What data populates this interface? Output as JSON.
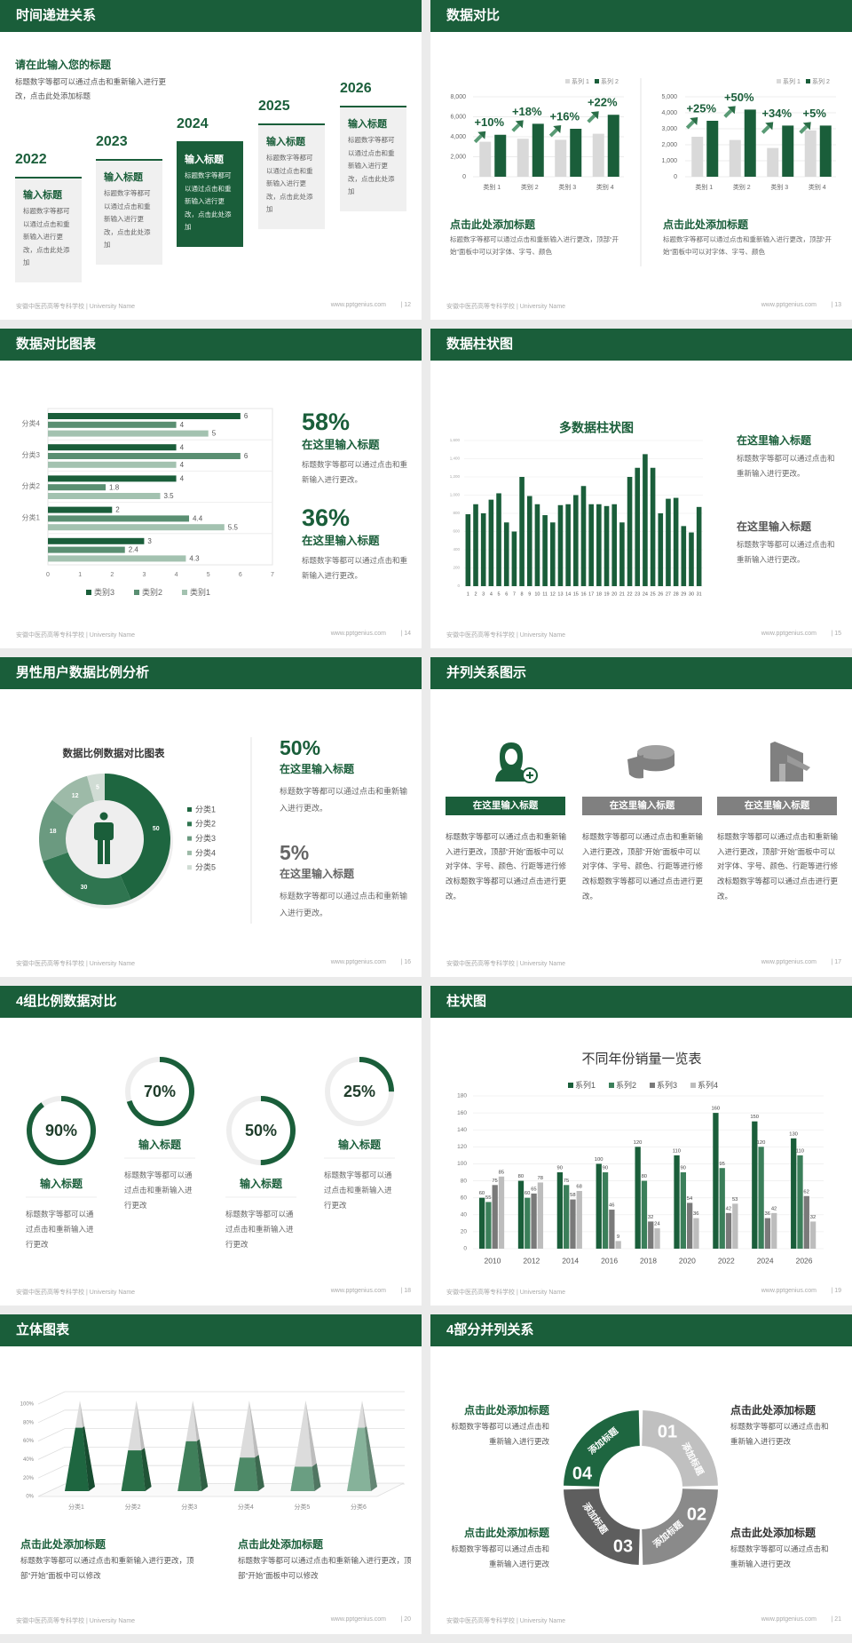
{
  "footer": {
    "school": "安徽中医药高等专科学校 | University Name",
    "site": "www.pptgenius.com"
  },
  "colors": {
    "brand_green": "#1a5e3a",
    "gray": "#808080",
    "light_gray": "#f0f0f0"
  },
  "slides": [
    {
      "title": "时间递进关系",
      "page": "12",
      "heading": "请在此输入您的标题",
      "desc": "标题数字等都可以通过点击和重新输入进行更改，点击此处添加标题",
      "steps": [
        {
          "year": "2022",
          "title": "输入标题",
          "text": "标题数字等都可以通过点击和重新输入进行更改，点击此处添加",
          "active": false
        },
        {
          "year": "2023",
          "title": "输入标题",
          "text": "标题数字等都可以通过点击和重新输入进行更改，点击此处添加",
          "active": false
        },
        {
          "year": "2024",
          "title": "输入标题",
          "text": "标题数字等都可以通过点击和重新输入进行更改，点击此处添加",
          "active": true
        },
        {
          "year": "2025",
          "title": "输入标题",
          "text": "标题数字等都可以通过点击和重新输入进行更改，点击此处添加",
          "active": false
        },
        {
          "year": "2026",
          "title": "输入标题",
          "text": "标题数字等都可以通过点击和重新输入进行更改，点击此处添加",
          "active": false
        }
      ]
    },
    {
      "title": "数据对比",
      "page": "13",
      "blocks": [
        {
          "heading": "点击此处添加标题",
          "text": "标题数字等都可以通过点击和重新输入进行更改，顶部“开始”面板中可以对字体、字号、颜色"
        },
        {
          "heading": "点击此处添加标题",
          "text": "标题数字等都可以通过点击和重新输入进行更改，顶部“开始”面板中可以对字体、字号、颜色"
        }
      ]
    },
    {
      "title": "数据对比图表",
      "page": "14",
      "stats": [
        {
          "value": "58%",
          "heading": "在这里输入标题",
          "text": "标题数字等都可以通过点击和重新输入进行更改。"
        },
        {
          "value": "36%",
          "heading": "在这里输入标题",
          "text": "标题数字等都可以通过点击和重新输入进行更改。"
        }
      ]
    },
    {
      "title": "数据柱状图",
      "page": "15",
      "blocks": [
        {
          "heading": "在这里输入标题",
          "text": "标题数字等都可以通过点击和重新输入进行更改。"
        },
        {
          "heading": "在这里输入标题",
          "text": "标题数字等都可以通过点击和重新输入进行更改。"
        }
      ]
    },
    {
      "title": "男性用户数据比例分析",
      "page": "16",
      "center_icon": "male-person-icon",
      "stats": [
        {
          "value": "50%",
          "heading": "在这里输入标题",
          "text": "标题数字等都可以通过点击和重新输入进行更改。"
        },
        {
          "value": "5%",
          "heading": "在这里输入标题",
          "text": "标题数字等都可以通过点击和重新输入进行更改。"
        }
      ]
    },
    {
      "title": "并列关系图示",
      "page": "17",
      "columns": [
        {
          "icon": "female-user-add-icon",
          "label": "在这里输入标题",
          "text": "标题数字等都可以通过点击和重新输入进行更改，顶部“开始”面板中可以对字体、字号、颜色、行距等进行修改标题数字等都可以通过点击进行更改。",
          "color": "#1a5e3a"
        },
        {
          "icon": "pie-chart-3d-icon",
          "label": "在这里输入标题",
          "text": "标题数字等都可以通过点击和重新输入进行更改，顶部“开始”面板中可以对字体、字号、颜色、行距等进行修改标题数字等都可以通过点击进行更改。",
          "color": "#808080"
        },
        {
          "icon": "store-building-icon",
          "label": "在这里输入标题",
          "text": "标题数字等都可以通过点击和重新输入进行更改，顶部“开始”面板中可以对字体、字号、颜色、行距等进行修改标题数字等都可以通过点击进行更改。",
          "color": "#808080"
        }
      ]
    },
    {
      "title": "4组比例数据对比",
      "page": "18",
      "rings": [
        {
          "label": "90%",
          "progress": 0.9,
          "heading": "输入标题",
          "text": "标题数字等都可以通过点击和重新输入进行更改"
        },
        {
          "label": "70%",
          "progress": 0.7,
          "heading": "输入标题",
          "text": "标题数字等都可以通过点击和重新输入进行更改"
        },
        {
          "label": "50%",
          "progress": 0.5,
          "heading": "输入标题",
          "text": "标题数字等都可以通过点击和重新输入进行更改"
        },
        {
          "label": "25%",
          "progress": 0.25,
          "heading": "输入标题",
          "text": "标题数字等都可以通过点击和重新输入进行更改"
        }
      ]
    },
    {
      "title": "柱状图",
      "page": "19"
    },
    {
      "title": "立体图表",
      "page": "20",
      "blocks": [
        {
          "heading": "点击此处添加标题",
          "text": "标题数字等都可以通过点击和重新输入进行更改，顶部“开始”面板中可以修改"
        },
        {
          "heading": "点击此处添加标题",
          "text": "标题数字等都可以通过点击和重新输入进行更改，顶部“开始”面板中可以修改"
        }
      ]
    },
    {
      "title": "4部分并列关系",
      "page": "21",
      "segments": [
        {
          "number": "01",
          "label": "添加标题",
          "color": "#c0c0c0"
        },
        {
          "number": "02",
          "label": "添加标题",
          "color": "#8a8a8a"
        },
        {
          "number": "03",
          "label": "添加标题",
          "color": "#5e5e5e"
        },
        {
          "number": "04",
          "label": "添加标题",
          "color": "#1e6640"
        }
      ],
      "blocks": [
        {
          "heading": "点击此处添加标题",
          "text": "标题数字等都可以通过点击和重新输入进行更改"
        },
        {
          "heading": "点击此处添加标题",
          "text": "标题数字等都可以通过点击和重新输入进行更改"
        },
        {
          "heading": "点击此处添加标题",
          "text": "标题数字等都可以通过点击和重新输入进行更改"
        },
        {
          "heading": "点击此处添加标题",
          "text": "标题数字等都可以通过点击和重新输入进行更改"
        }
      ]
    }
  ],
  "chart_data": [
    {
      "type": "bar",
      "title": "",
      "categories": [
        "类别 1",
        "类别 2",
        "类别 3",
        "类别 4"
      ],
      "series": [
        {
          "name": "系列 1",
          "values": [
            3500,
            3800,
            3700,
            4300
          ],
          "color": "#d9d9d9"
        },
        {
          "name": "系列 2",
          "values": [
            4200,
            5300,
            4800,
            6200
          ],
          "color": "#1a5e3a"
        }
      ],
      "annotations": [
        "+10%",
        "+18%",
        "+16%",
        "+22%"
      ],
      "ylim": [
        0,
        8000
      ],
      "yticks": [
        "0",
        "2,000",
        "4,000",
        "6,000",
        "8,000"
      ],
      "grid": true,
      "legend": "top-right"
    },
    {
      "type": "bar",
      "title": "",
      "categories": [
        "类别 1",
        "类别 2",
        "类别 3",
        "类别 4"
      ],
      "series": [
        {
          "name": "系列 1",
          "values": [
            2500,
            2300,
            1800,
            2900
          ],
          "color": "#d9d9d9"
        },
        {
          "name": "系列 2",
          "values": [
            3500,
            4200,
            3200,
            3200
          ],
          "color": "#1a5e3a"
        }
      ],
      "annotations": [
        "+25%",
        "+50%",
        "+34%",
        "+5%"
      ],
      "ylim": [
        0,
        5000
      ],
      "yticks": [
        "0",
        "1,000",
        "2,000",
        "3,000",
        "4,000",
        "5,000"
      ],
      "grid": true,
      "legend": "top-right"
    },
    {
      "type": "bar",
      "orientation": "horizontal",
      "title": "",
      "categories": [
        "分类4",
        "分类3",
        "分类2",
        "分类1",
        ""
      ],
      "series": [
        {
          "name": "类别3",
          "values": [
            6,
            4,
            4,
            2,
            3
          ],
          "color": "#1a5e3a"
        },
        {
          "name": "类别2",
          "values": [
            4,
            6,
            1.8,
            4.4,
            2.4
          ],
          "color": "#5a8f72"
        },
        {
          "name": "类别1",
          "values": [
            5,
            4,
            3.5,
            5.5,
            4.3
          ],
          "color": "#a3c2b0"
        }
      ],
      "xlim": [
        0,
        7
      ],
      "xticks": [
        "0",
        "1",
        "2",
        "3",
        "4",
        "5",
        "6",
        "7"
      ],
      "grid": true,
      "legend": "bottom"
    },
    {
      "type": "bar",
      "title": "多数据柱状图",
      "categories": [
        "1",
        "2",
        "3",
        "4",
        "5",
        "6",
        "7",
        "8",
        "9",
        "10",
        "11",
        "12",
        "13",
        "14",
        "15",
        "16",
        "17",
        "18",
        "19",
        "20",
        "21",
        "22",
        "23",
        "24",
        "25",
        "26",
        "27",
        "28",
        "29",
        "30",
        "31"
      ],
      "values": [
        790,
        900,
        800,
        950,
        1020,
        700,
        600,
        1200,
        990,
        900,
        780,
        700,
        890,
        900,
        1000,
        1100,
        900,
        900,
        880,
        900,
        700,
        1200,
        1300,
        1450,
        1300,
        800,
        960,
        970,
        660,
        590,
        870
      ],
      "color": "#1a5e3a",
      "ylim": [
        0,
        1600
      ],
      "yticks": [
        "0",
        "200",
        "400",
        "600",
        "800",
        "1,000",
        "1,200",
        "1,400",
        "1,600"
      ],
      "grid": true
    },
    {
      "type": "pie",
      "donut": true,
      "title": "数据比例数据对比图表",
      "categories": [
        "分类1",
        "分类2",
        "分类3",
        "分类4",
        "分类5"
      ],
      "values": [
        50,
        30,
        18,
        12,
        5
      ],
      "colors": [
        "#1e6640",
        "#2f7550",
        "#6b9a80",
        "#9dbaa8",
        "#d0dcd4"
      ],
      "legend": "right"
    },
    {
      "type": "bar",
      "title": "不同年份销量一览表",
      "categories": [
        "2010",
        "2012",
        "2014",
        "2016",
        "2018",
        "2020",
        "2022",
        "2024",
        "2026"
      ],
      "series": [
        {
          "name": "系列1",
          "values": [
            60,
            80,
            90,
            100,
            120,
            110,
            160,
            150,
            130
          ],
          "color": "#1a5e3a"
        },
        {
          "name": "系列2",
          "values": [
            55,
            60,
            75,
            90,
            80,
            90,
            95,
            120,
            110
          ],
          "color": "#3b7f5a"
        },
        {
          "name": "系列3",
          "values": [
            75,
            65,
            58,
            46,
            32,
            54,
            42,
            36,
            62
          ],
          "color": "#7a7a7a"
        },
        {
          "name": "系列4",
          "values": [
            85,
            78,
            68,
            9,
            24,
            36,
            53,
            42,
            32
          ],
          "color": "#bdbdbd"
        }
      ],
      "ylim": [
        0,
        180
      ],
      "yticks": [
        "0",
        "20",
        "40",
        "60",
        "80",
        "100",
        "120",
        "140",
        "160",
        "180"
      ],
      "grid": true,
      "legend": "top"
    },
    {
      "type": "bar",
      "style": "3d-pyramid",
      "title": "",
      "categories": [
        "分类1",
        "分类2",
        "分类3",
        "分类4",
        "分类5",
        "分类6"
      ],
      "values": [
        70,
        45,
        55,
        37,
        27,
        70
      ],
      "colors": [
        "#1e6640",
        "#2a7048",
        "#3f7f5a",
        "#4e8a68",
        "#6a9e82",
        "#86b29a"
      ],
      "ylim": [
        0,
        100
      ],
      "yticks": [
        "0%",
        "20%",
        "40%",
        "60%",
        "80%",
        "100%"
      ],
      "grid": true
    }
  ]
}
